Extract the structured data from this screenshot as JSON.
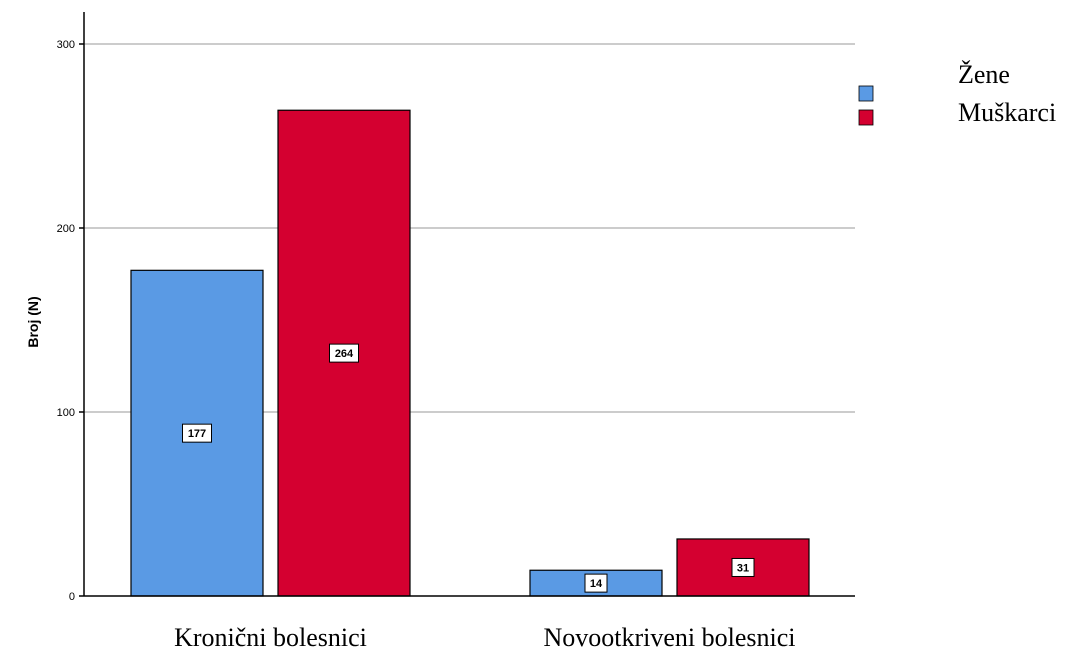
{
  "chart_data": {
    "type": "bar",
    "title": "",
    "xlabel": "",
    "ylabel": "Broj (N)",
    "ylim": [
      0,
      300
    ],
    "yticks": [
      0,
      100,
      200,
      300
    ],
    "grid": true,
    "legend_position": "top-right",
    "categories": [
      "Kronični bolesnici",
      "Novootkriveni bolesnici"
    ],
    "series": [
      {
        "name": "Žene",
        "color": "#5a9ae4",
        "values": [
          177,
          14
        ]
      },
      {
        "name": "Muškarci",
        "color": "#d40030",
        "values": [
          264,
          31
        ]
      }
    ]
  }
}
